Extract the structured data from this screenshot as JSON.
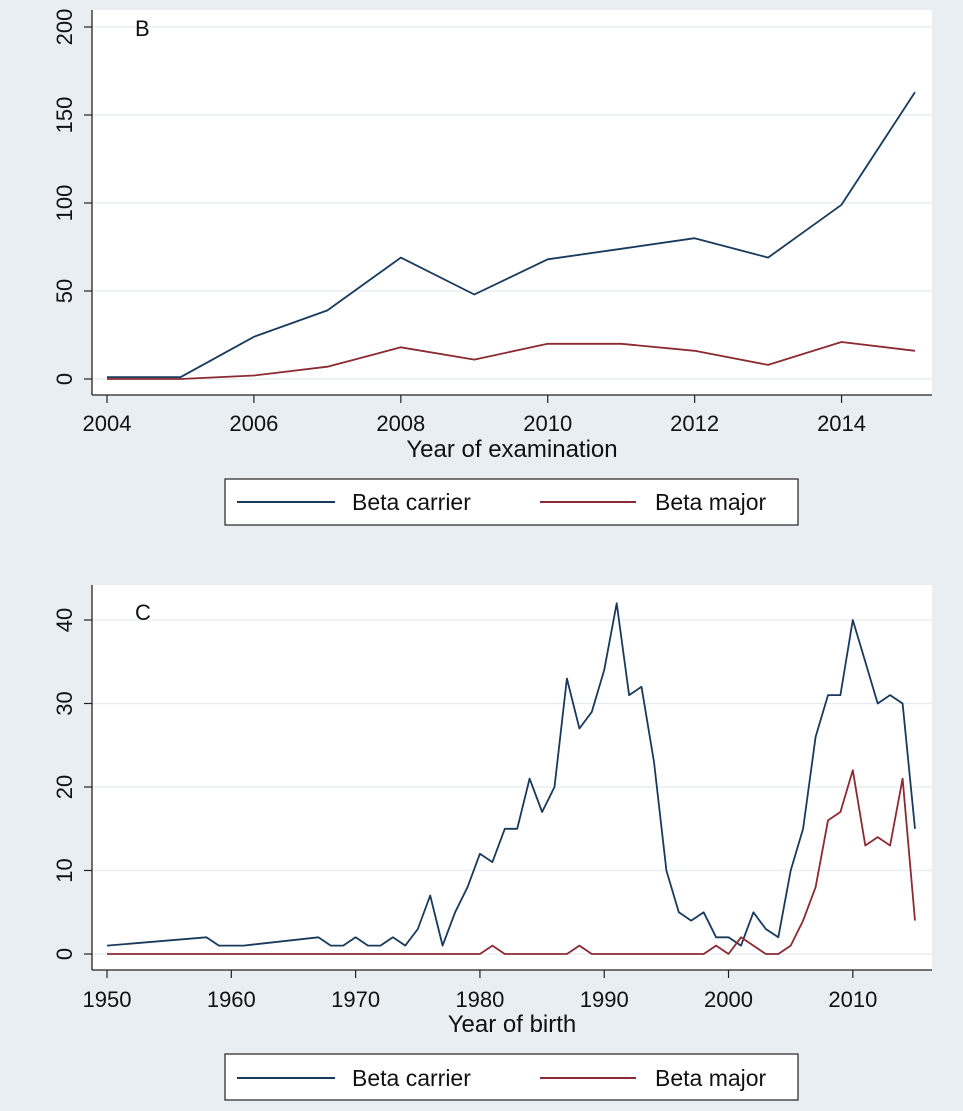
{
  "colors": {
    "carrier": "#1a3a5c",
    "major": "#8b2a32",
    "grid": "#e6ecf0",
    "plot_bg": "#ffffff",
    "page_bg": "#e9eef2"
  },
  "chart_data": [
    {
      "type": "line",
      "title": "B",
      "xlabel": "Year of examination",
      "ylabel": "",
      "xlim": [
        2004,
        2015
      ],
      "ylim": [
        0,
        200
      ],
      "xticks": [
        2004,
        2006,
        2008,
        2010,
        2012,
        2014
      ],
      "yticks": [
        0,
        50,
        100,
        150,
        200
      ],
      "grid": true,
      "legend_position": "bottom",
      "x": [
        2004,
        2005,
        2006,
        2007,
        2008,
        2009,
        2010,
        2011,
        2012,
        2013,
        2014,
        2015
      ],
      "series": [
        {
          "name": "Beta carrier",
          "color_key": "carrier",
          "values": [
            1,
            1,
            24,
            39,
            69,
            48,
            68,
            74,
            80,
            69,
            99,
            163
          ]
        },
        {
          "name": "Beta major",
          "color_key": "major",
          "values": [
            0,
            0,
            2,
            7,
            18,
            11,
            20,
            20,
            16,
            8,
            21,
            16
          ]
        }
      ]
    },
    {
      "type": "line",
      "title": "C",
      "xlabel": "Year of birth",
      "ylabel": "",
      "xlim": [
        1950,
        2015
      ],
      "ylim": [
        0,
        42
      ],
      "xticks": [
        1950,
        1960,
        1970,
        1980,
        1990,
        2000,
        2010
      ],
      "yticks": [
        0,
        10,
        20,
        30,
        40
      ],
      "grid": true,
      "legend_position": "bottom",
      "series": [
        {
          "name": "Beta carrier",
          "color_key": "carrier",
          "x": [
            1950,
            1958,
            1959,
            1961,
            1967,
            1968,
            1969,
            1970,
            1971,
            1972,
            1973,
            1974,
            1975,
            1976,
            1977,
            1978,
            1979,
            1980,
            1981,
            1982,
            1983,
            1984,
            1985,
            1986,
            1987,
            1988,
            1989,
            1990,
            1991,
            1992,
            1993,
            1994,
            1995,
            1996,
            1997,
            1998,
            1999,
            2000,
            2001,
            2002,
            2003,
            2004,
            2005,
            2006,
            2007,
            2008,
            2009,
            2010,
            2011,
            2012,
            2013,
            2014,
            2015
          ],
          "values": [
            1,
            2,
            1,
            1,
            2,
            1,
            1,
            2,
            1,
            1,
            2,
            1,
            3,
            7,
            1,
            5,
            8,
            12,
            11,
            15,
            15,
            21,
            17,
            20,
            33,
            27,
            29,
            34,
            42,
            31,
            32,
            23,
            10,
            5,
            4,
            5,
            2,
            2,
            1,
            5,
            3,
            2,
            10,
            15,
            26,
            31,
            31,
            40,
            35,
            30,
            31,
            30,
            15
          ]
        },
        {
          "name": "Beta major",
          "color_key": "major",
          "x": [
            1950,
            1980,
            1981,
            1982,
            1987,
            1988,
            1989,
            1998,
            1999,
            2000,
            2001,
            2002,
            2003,
            2004,
            2005,
            2006,
            2007,
            2008,
            2009,
            2010,
            2011,
            2012,
            2013,
            2014,
            2015
          ],
          "values": [
            0,
            0,
            1,
            0,
            0,
            1,
            0,
            0,
            1,
            0,
            2,
            1,
            0,
            0,
            1,
            4,
            8,
            16,
            17,
            22,
            13,
            14,
            13,
            21,
            4
          ]
        }
      ]
    }
  ]
}
